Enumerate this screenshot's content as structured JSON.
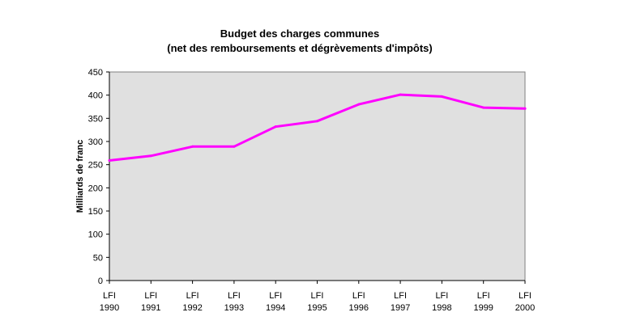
{
  "chart_data": {
    "type": "line",
    "title": "Budget des charges communes",
    "subtitle": "(net des remboursements et dégrèvements d'impôts)",
    "ylabel": "Milliards de franc",
    "xlabel": "",
    "categories": [
      [
        "LFI",
        "1990"
      ],
      [
        "LFI",
        "1991"
      ],
      [
        "LFI",
        "1992"
      ],
      [
        "LFI",
        "1993"
      ],
      [
        "LFI",
        "1994"
      ],
      [
        "LFI",
        "1995"
      ],
      [
        "LFI",
        "1996"
      ],
      [
        "LFI",
        "1997"
      ],
      [
        "LFI",
        "1998"
      ],
      [
        "LFI",
        "1999"
      ],
      [
        "LFI",
        "2000"
      ]
    ],
    "series": [
      {
        "values": [
          259,
          269,
          289,
          289,
          332,
          344,
          380,
          401,
          397,
          373,
          371
        ]
      }
    ],
    "ylim": [
      0,
      450
    ],
    "yticks": [
      "0",
      "50",
      "100",
      "150",
      "200",
      "250",
      "300",
      "350",
      "400",
      "450"
    ],
    "grid": false,
    "legend": "none",
    "colors": {
      "line": "#ff00ff",
      "plot_background": "#e0e0e0",
      "axis": "#000000"
    }
  }
}
